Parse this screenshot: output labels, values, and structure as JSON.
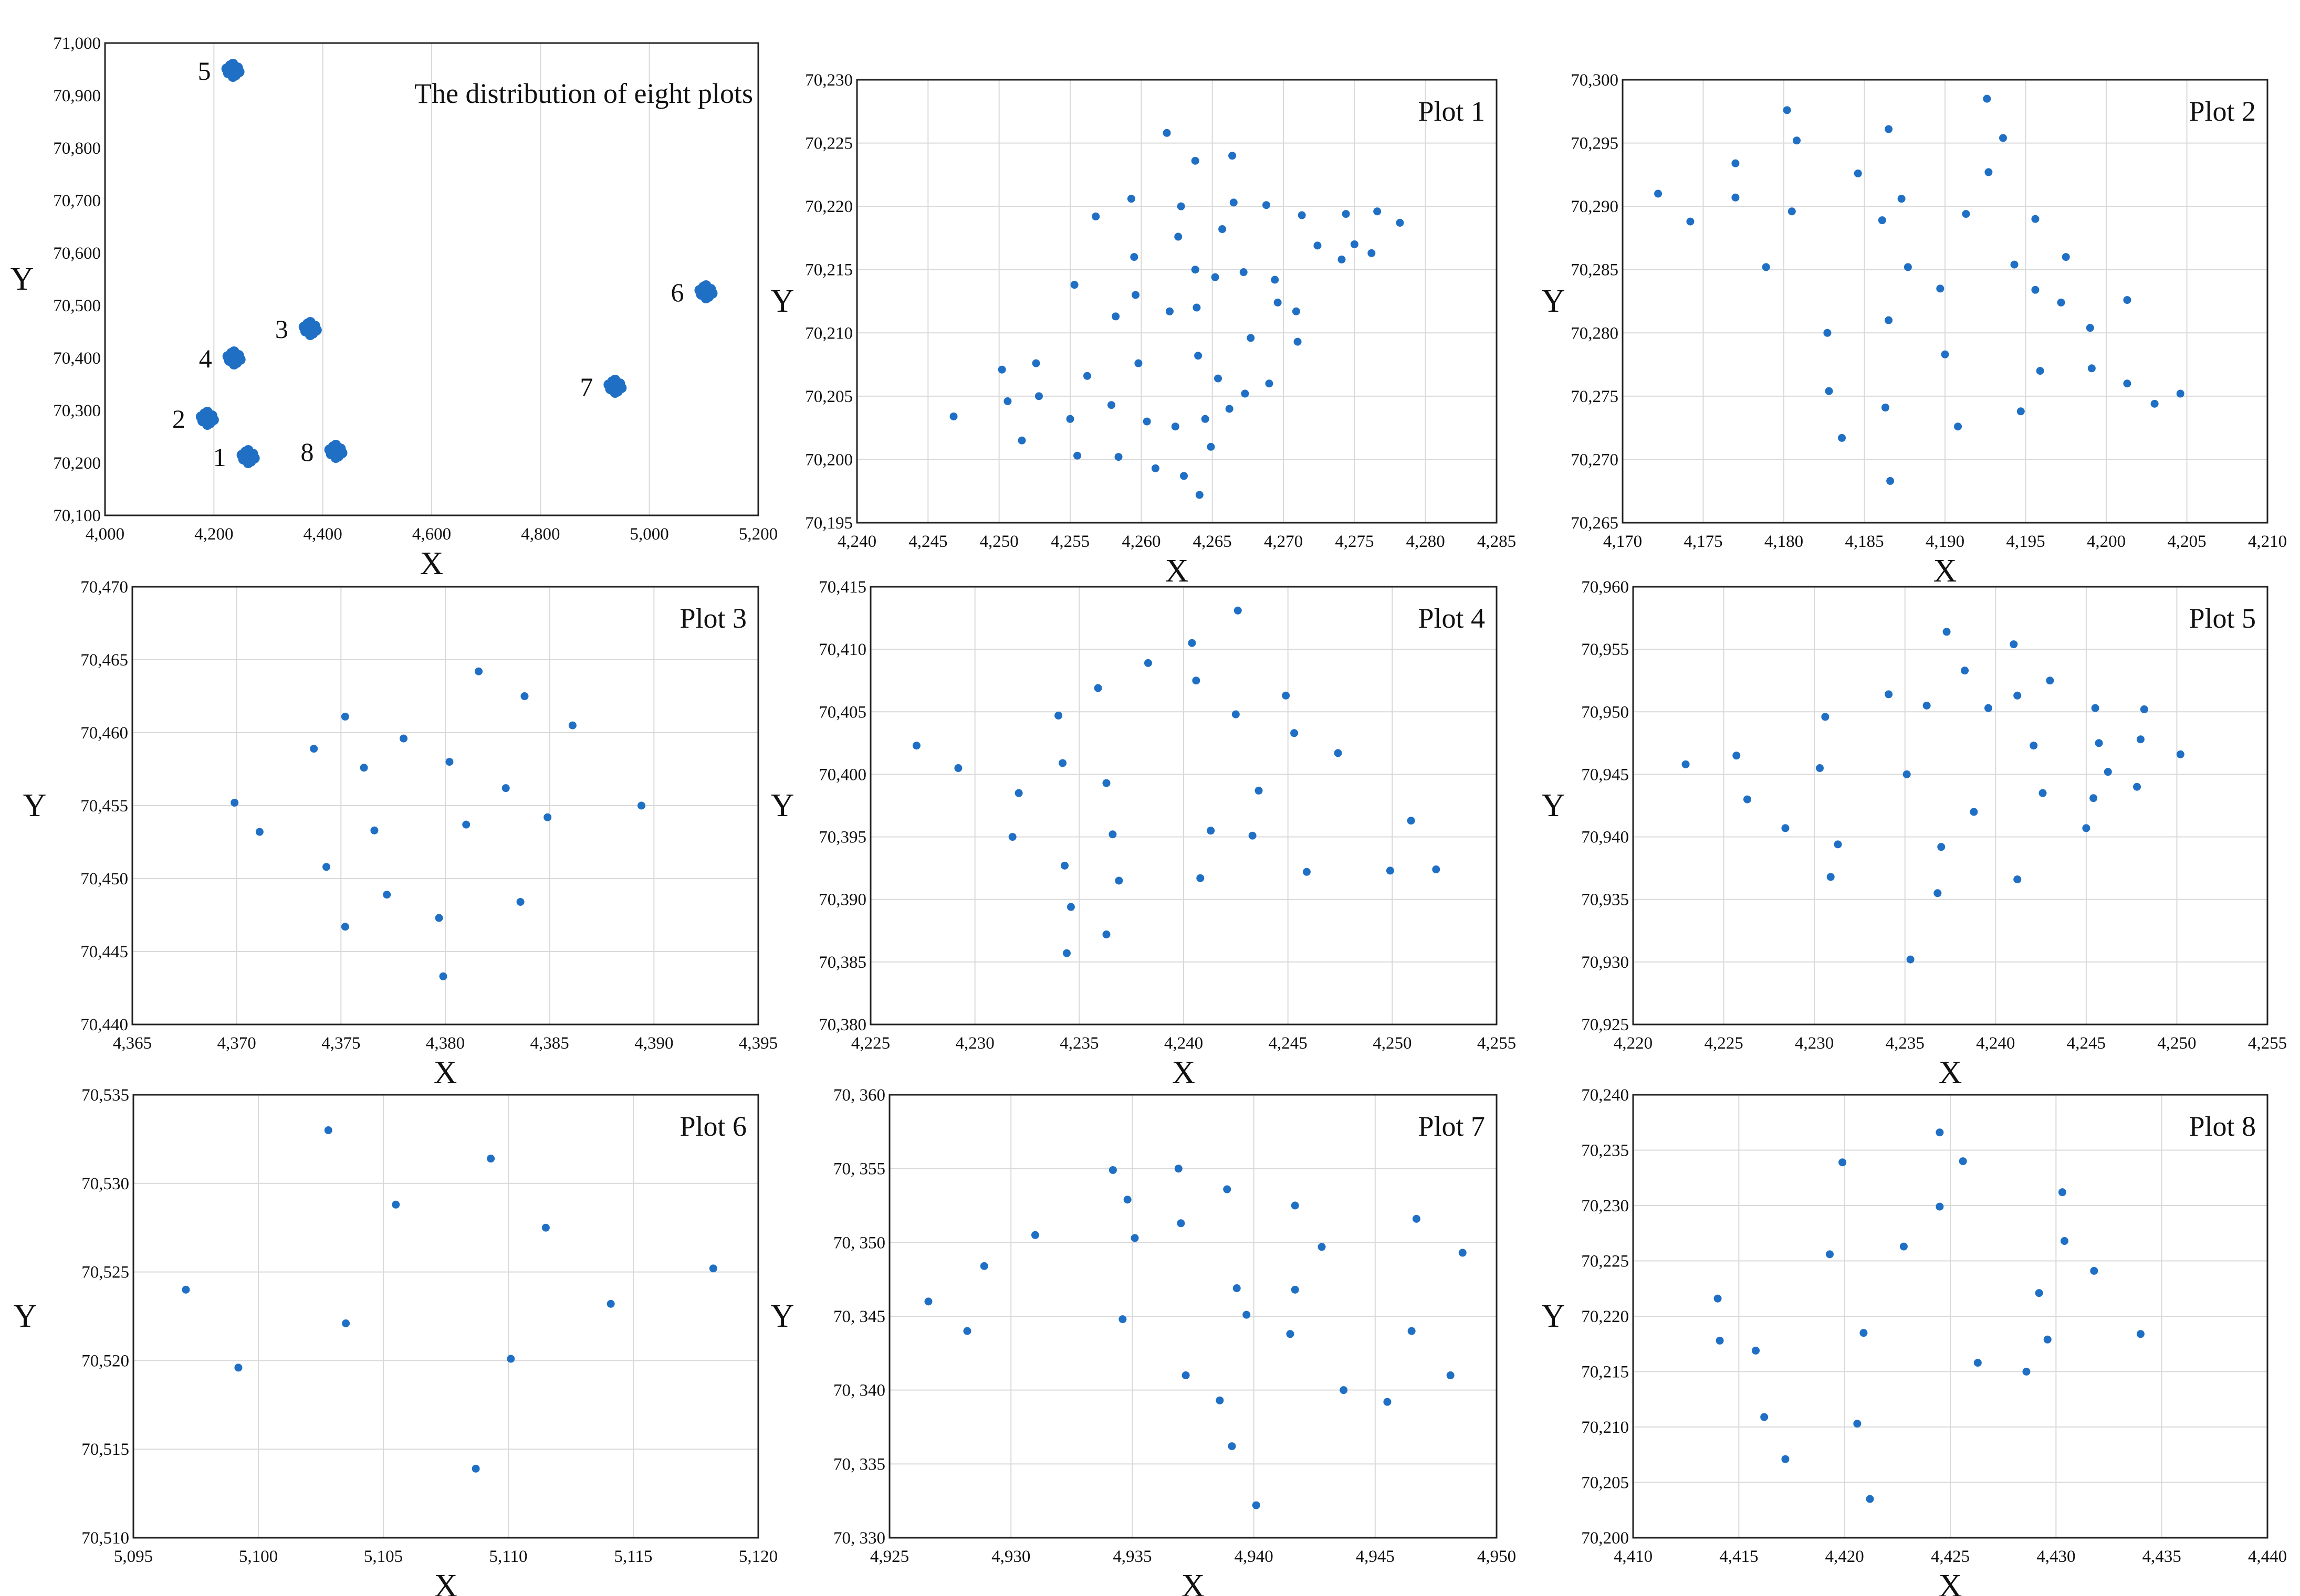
{
  "chart_data": [
    {
      "type": "scatter",
      "title": "The distribution of eight plots",
      "xlabel": "X",
      "ylabel": "Y",
      "xlim": [
        4000,
        5200
      ],
      "ylim": [
        70100,
        71000
      ],
      "x_ticks": [
        "4,000",
        "4,200",
        "4,400",
        "4,600",
        "4,800",
        "5,000",
        "5,200"
      ],
      "y_ticks": [
        "70,100",
        "70,200",
        "70,300",
        "70,400",
        "70,500",
        "70,600",
        "70,700",
        "70,800",
        "70,900",
        "71,000"
      ],
      "series_color": "#1f6fc5",
      "clusters": [
        {
          "label": "1",
          "x": 4263,
          "y": 70212
        },
        {
          "label": "2",
          "x": 4188,
          "y": 70285
        },
        {
          "label": "3",
          "x": 4377,
          "y": 70456
        },
        {
          "label": "4",
          "x": 4237,
          "y": 70400
        },
        {
          "label": "5",
          "x": 4235,
          "y": 70948
        },
        {
          "label": "6",
          "x": 5104,
          "y": 70526
        },
        {
          "label": "7",
          "x": 4937,
          "y": 70346
        },
        {
          "label": "8",
          "x": 4424,
          "y": 70222
        }
      ],
      "grid": "vertical"
    },
    {
      "type": "scatter",
      "title": "Plot 1",
      "xlabel": "X",
      "ylabel": "Y",
      "xlim": [
        4240,
        4285
      ],
      "ylim": [
        70195,
        70230
      ],
      "x_ticks": [
        "4,240",
        "4,245",
        "4,250",
        "4,255",
        "4,260",
        "4,265",
        "4,270",
        "4,275",
        "4,280",
        "4,285"
      ],
      "y_ticks": [
        "70,195",
        "70,200",
        "70,205",
        "70,210",
        "70,215",
        "70,220",
        "70,225",
        "70,230"
      ],
      "grid": "both",
      "points": [
        [
          4246.8,
          70203.4
        ],
        [
          4250.2,
          70207.1
        ],
        [
          4250.6,
          70204.6
        ],
        [
          4251.6,
          70201.5
        ],
        [
          4252.6,
          70207.6
        ],
        [
          4252.8,
          70205.0
        ],
        [
          4255.0,
          70203.2
        ],
        [
          4255.3,
          70213.8
        ],
        [
          4255.5,
          70200.3
        ],
        [
          4256.2,
          70206.6
        ],
        [
          4256.8,
          70219.2
        ],
        [
          4257.9,
          70204.3
        ],
        [
          4258.2,
          70211.3
        ],
        [
          4258.4,
          70200.2
        ],
        [
          4259.3,
          70220.6
        ],
        [
          4259.5,
          70216.0
        ],
        [
          4259.6,
          70213.0
        ],
        [
          4259.8,
          70207.6
        ],
        [
          4260.4,
          70203.0
        ],
        [
          4261.0,
          70199.3
        ],
        [
          4261.8,
          70225.8
        ],
        [
          4262.0,
          70211.7
        ],
        [
          4262.4,
          70202.6
        ],
        [
          4262.6,
          70217.6
        ],
        [
          4262.8,
          70220.0
        ],
        [
          4263.0,
          70198.7
        ],
        [
          4263.8,
          70223.6
        ],
        [
          4263.8,
          70215.0
        ],
        [
          4263.9,
          70212.0
        ],
        [
          4264.0,
          70208.2
        ],
        [
          4264.1,
          70197.2
        ],
        [
          4264.5,
          70203.2
        ],
        [
          4264.9,
          70201.0
        ],
        [
          4265.2,
          70214.4
        ],
        [
          4265.4,
          70206.4
        ],
        [
          4265.7,
          70218.2
        ],
        [
          4266.2,
          70204.0
        ],
        [
          4266.4,
          70224.0
        ],
        [
          4266.5,
          70220.3
        ],
        [
          4267.2,
          70214.8
        ],
        [
          4267.3,
          70205.2
        ],
        [
          4267.7,
          70209.6
        ],
        [
          4268.8,
          70220.1
        ],
        [
          4269.0,
          70206.0
        ],
        [
          4269.4,
          70214.2
        ],
        [
          4269.6,
          70212.4
        ],
        [
          4270.9,
          70211.7
        ],
        [
          4271.0,
          70209.3
        ],
        [
          4271.3,
          70219.3
        ],
        [
          4272.4,
          70216.9
        ],
        [
          4274.1,
          70215.8
        ],
        [
          4274.4,
          70219.4
        ],
        [
          4275.0,
          70217.0
        ],
        [
          4276.2,
          70216.3
        ],
        [
          4276.6,
          70219.6
        ],
        [
          4278.2,
          70218.7
        ]
      ]
    },
    {
      "type": "scatter",
      "title": "Plot 2",
      "xlabel": "X",
      "ylabel": "Y",
      "xlim": [
        4170,
        4210
      ],
      "ylim": [
        70265,
        70300
      ],
      "x_ticks": [
        "4,170",
        "4,175",
        "4,180",
        "4,185",
        "4,190",
        "4,195",
        "4,200",
        "4,205",
        "4,210"
      ],
      "y_ticks": [
        "70,265",
        "70,270",
        "70,275",
        "70,280",
        "70,285",
        "70,290",
        "70,295",
        "70,300"
      ],
      "grid": "both",
      "points": [
        [
          4172.2,
          70291.0
        ],
        [
          4174.2,
          70288.8
        ],
        [
          4177.0,
          70293.4
        ],
        [
          4177.0,
          70290.7
        ],
        [
          4178.9,
          70285.2
        ],
        [
          4180.2,
          70297.6
        ],
        [
          4180.5,
          70289.6
        ],
        [
          4180.8,
          70295.2
        ],
        [
          4182.7,
          70280.0
        ],
        [
          4182.8,
          70275.4
        ],
        [
          4183.6,
          70271.7
        ],
        [
          4184.6,
          70292.6
        ],
        [
          4186.1,
          70288.9
        ],
        [
          4186.3,
          70274.1
        ],
        [
          4186.5,
          70296.1
        ],
        [
          4186.5,
          70281.0
        ],
        [
          4186.6,
          70268.3
        ],
        [
          4187.3,
          70290.6
        ],
        [
          4187.7,
          70285.2
        ],
        [
          4189.7,
          70283.5
        ],
        [
          4190.0,
          70278.3
        ],
        [
          4190.8,
          70272.6
        ],
        [
          4191.3,
          70289.4
        ],
        [
          4192.6,
          70298.5
        ],
        [
          4192.7,
          70292.7
        ],
        [
          4193.6,
          70295.4
        ],
        [
          4194.3,
          70285.4
        ],
        [
          4194.7,
          70273.8
        ],
        [
          4195.6,
          70289.0
        ],
        [
          4195.6,
          70283.4
        ],
        [
          4195.9,
          70277.0
        ],
        [
          4197.2,
          70282.4
        ],
        [
          4197.5,
          70286.0
        ],
        [
          4199.0,
          70280.4
        ],
        [
          4199.1,
          70277.2
        ],
        [
          4201.3,
          70276.0
        ],
        [
          4201.3,
          70282.6
        ],
        [
          4203.0,
          70274.4
        ],
        [
          4204.6,
          70275.2
        ]
      ]
    },
    {
      "type": "scatter",
      "title": "Plot 3",
      "xlabel": "X",
      "ylabel": "Y",
      "xlim": [
        4365,
        4395
      ],
      "ylim": [
        70440,
        70470
      ],
      "x_ticks": [
        "4,365",
        "4,370",
        "4,375",
        "4,380",
        "4,385",
        "4,390",
        "4,395"
      ],
      "y_ticks": [
        "70,440",
        "70,445",
        "70,450",
        "70,455",
        "70,460",
        "70,465",
        "70,470"
      ],
      "grid": "both",
      "points": [
        [
          4369.9,
          70455.2
        ],
        [
          4371.1,
          70453.2
        ],
        [
          4373.7,
          70458.9
        ],
        [
          4374.3,
          70450.8
        ],
        [
          4375.2,
          70461.1
        ],
        [
          4375.2,
          70446.7
        ],
        [
          4376.1,
          70457.6
        ],
        [
          4376.6,
          70453.3
        ],
        [
          4377.2,
          70448.9
        ],
        [
          4378.0,
          70459.6
        ],
        [
          4379.7,
          70447.3
        ],
        [
          4379.9,
          70443.3
        ],
        [
          4380.2,
          70458.0
        ],
        [
          4381.0,
          70453.7
        ],
        [
          4381.6,
          70464.2
        ],
        [
          4382.9,
          70456.2
        ],
        [
          4383.6,
          70448.4
        ],
        [
          4383.8,
          70462.5
        ],
        [
          4384.9,
          70454.2
        ],
        [
          4386.1,
          70460.5
        ],
        [
          4389.4,
          70455.0
        ]
      ]
    },
    {
      "type": "scatter",
      "title": "Plot 4",
      "xlabel": "X",
      "ylabel": "Y",
      "xlim": [
        4225,
        4255
      ],
      "ylim": [
        70380,
        70415
      ],
      "x_ticks": [
        "4,225",
        "4,230",
        "4,235",
        "4,240",
        "4,245",
        "4,250",
        "4,255"
      ],
      "y_ticks": [
        "70,380",
        "70,385",
        "70,390",
        "70,395",
        "70,400",
        "70,405",
        "70,410",
        "70,415"
      ],
      "grid": "both",
      "points": [
        [
          4227.2,
          70402.3
        ],
        [
          4229.2,
          70400.5
        ],
        [
          4231.8,
          70395.0
        ],
        [
          4232.1,
          70398.5
        ],
        [
          4234.0,
          70404.7
        ],
        [
          4234.2,
          70400.9
        ],
        [
          4234.3,
          70392.7
        ],
        [
          4234.4,
          70385.7
        ],
        [
          4234.6,
          70389.4
        ],
        [
          4235.9,
          70406.9
        ],
        [
          4236.3,
          70399.3
        ],
        [
          4236.3,
          70387.2
        ],
        [
          4236.6,
          70395.2
        ],
        [
          4236.9,
          70391.5
        ],
        [
          4238.3,
          70408.9
        ],
        [
          4240.4,
          70410.5
        ],
        [
          4240.6,
          70407.5
        ],
        [
          4240.8,
          70391.7
        ],
        [
          4241.3,
          70395.5
        ],
        [
          4242.5,
          70404.8
        ],
        [
          4242.6,
          70413.1
        ],
        [
          4243.3,
          70395.1
        ],
        [
          4243.6,
          70398.7
        ],
        [
          4244.9,
          70406.3
        ],
        [
          4245.3,
          70403.3
        ],
        [
          4245.9,
          70392.2
        ],
        [
          4247.4,
          70401.7
        ],
        [
          4249.9,
          70392.3
        ],
        [
          4250.9,
          70396.3
        ],
        [
          4252.1,
          70392.4
        ]
      ]
    },
    {
      "type": "scatter",
      "title": "Plot 5",
      "xlabel": "X",
      "ylabel": "Y",
      "xlim": [
        4220,
        4255
      ],
      "ylim": [
        70925,
        70960
      ],
      "x_ticks": [
        "4,220",
        "4,225",
        "4,230",
        "4,235",
        "4,240",
        "4,245",
        "4,250",
        "4,255"
      ],
      "y_ticks": [
        "70,925",
        "70,930",
        "70,935",
        "70,940",
        "70,945",
        "70,950",
        "70,955",
        "70,960"
      ],
      "grid": "both",
      "points": [
        [
          4222.9,
          70945.8
        ],
        [
          4225.7,
          70946.5
        ],
        [
          4226.3,
          70943.0
        ],
        [
          4228.4,
          70940.7
        ],
        [
          4230.3,
          70945.5
        ],
        [
          4230.6,
          70949.6
        ],
        [
          4230.9,
          70936.8
        ],
        [
          4231.3,
          70939.4
        ],
        [
          4234.1,
          70951.4
        ],
        [
          4235.1,
          70945.0
        ],
        [
          4235.3,
          70930.2
        ],
        [
          4236.2,
          70950.5
        ],
        [
          4236.8,
          70935.5
        ],
        [
          4237.0,
          70939.2
        ],
        [
          4237.3,
          70956.4
        ],
        [
          4238.3,
          70953.3
        ],
        [
          4238.8,
          70942.0
        ],
        [
          4239.6,
          70950.3
        ],
        [
          4241.0,
          70955.4
        ],
        [
          4241.2,
          70936.6
        ],
        [
          4241.2,
          70951.3
        ],
        [
          4242.1,
          70947.3
        ],
        [
          4242.6,
          70943.5
        ],
        [
          4243.0,
          70952.5
        ],
        [
          4245.0,
          70940.7
        ],
        [
          4245.4,
          70943.1
        ],
        [
          4245.5,
          70950.3
        ],
        [
          4245.7,
          70947.5
        ],
        [
          4246.2,
          70945.2
        ],
        [
          4247.8,
          70944.0
        ],
        [
          4248.0,
          70947.8
        ],
        [
          4248.2,
          70950.2
        ],
        [
          4250.2,
          70946.6
        ]
      ]
    },
    {
      "type": "scatter",
      "title": "Plot 6",
      "xlabel": "X",
      "ylabel": "Y",
      "xlim": [
        5095,
        5120
      ],
      "ylim": [
        70510,
        70535
      ],
      "x_ticks": [
        "5,095",
        "5,100",
        "5,105",
        "5,110",
        "5,115",
        "5,120"
      ],
      "y_ticks": [
        "70,510",
        "70,515",
        "70,520",
        "70,525",
        "70,530",
        "70,535"
      ],
      "grid": "both",
      "points": [
        [
          5097.1,
          70524.0
        ],
        [
          5099.2,
          70519.6
        ],
        [
          5102.8,
          70533.0
        ],
        [
          5103.5,
          70522.1
        ],
        [
          5105.5,
          70528.8
        ],
        [
          5108.7,
          70513.9
        ],
        [
          5109.3,
          70531.4
        ],
        [
          5110.1,
          70520.1
        ],
        [
          5111.5,
          70527.5
        ],
        [
          5114.1,
          70523.2
        ],
        [
          5118.2,
          70525.2
        ]
      ]
    },
    {
      "type": "scatter",
      "title": "Plot 7",
      "xlabel": "X",
      "ylabel": "Y",
      "xlim": [
        4925,
        4950
      ],
      "ylim": [
        70330,
        70360
      ],
      "x_ticks": [
        "4,925",
        "4,930",
        "4,935",
        "4,940",
        "4,945",
        "4,950"
      ],
      "y_ticks": [
        "70, 330",
        "70, 335",
        "70, 340",
        "70, 345",
        "70, 350",
        "70, 355",
        "70, 360"
      ],
      "grid": "both",
      "points": [
        [
          4926.6,
          70346.0
        ],
        [
          4928.2,
          70344.0
        ],
        [
          4928.9,
          70348.4
        ],
        [
          4931.0,
          70350.5
        ],
        [
          4934.2,
          70354.9
        ],
        [
          4934.6,
          70344.8
        ],
        [
          4934.8,
          70352.9
        ],
        [
          4935.1,
          70350.3
        ],
        [
          4936.9,
          70355.0
        ],
        [
          4937.0,
          70351.3
        ],
        [
          4937.2,
          70341.0
        ],
        [
          4938.6,
          70339.3
        ],
        [
          4938.9,
          70353.6
        ],
        [
          4939.1,
          70336.2
        ],
        [
          4939.3,
          70346.9
        ],
        [
          4939.7,
          70345.1
        ],
        [
          4940.1,
          70332.2
        ],
        [
          4941.5,
          70343.8
        ],
        [
          4941.7,
          70352.5
        ],
        [
          4941.7,
          70346.8
        ],
        [
          4942.8,
          70349.7
        ],
        [
          4943.7,
          70340.0
        ],
        [
          4945.5,
          70339.2
        ],
        [
          4946.5,
          70344.0
        ],
        [
          4946.7,
          70351.6
        ],
        [
          4948.1,
          70341.0
        ],
        [
          4948.6,
          70349.3
        ]
      ]
    },
    {
      "type": "scatter",
      "title": "Plot 8",
      "xlabel": "X",
      "ylabel": "Y",
      "xlim": [
        4410,
        4440
      ],
      "ylim": [
        70200,
        70240
      ],
      "x_ticks": [
        "4,410",
        "4,415",
        "4,420",
        "4,425",
        "4,430",
        "4,435",
        "4,440"
      ],
      "y_ticks": [
        "70,200",
        "70,205",
        "70,210",
        "70,215",
        "70,220",
        "70,225",
        "70,230",
        "70,235",
        "70,240"
      ],
      "grid": "both",
      "points": [
        [
          4414.0,
          70221.6
        ],
        [
          4414.1,
          70217.8
        ],
        [
          4415.8,
          70216.9
        ],
        [
          4416.2,
          70210.9
        ],
        [
          4417.2,
          70207.1
        ],
        [
          4419.3,
          70225.6
        ],
        [
          4419.9,
          70233.9
        ],
        [
          4420.6,
          70210.3
        ],
        [
          4420.9,
          70218.5
        ],
        [
          4421.2,
          70203.5
        ],
        [
          4422.8,
          70226.3
        ],
        [
          4424.5,
          70236.6
        ],
        [
          4424.5,
          70229.9
        ],
        [
          4425.6,
          70234.0
        ],
        [
          4426.3,
          70215.8
        ],
        [
          4428.6,
          70215.0
        ],
        [
          4429.2,
          70222.1
        ],
        [
          4429.6,
          70217.9
        ],
        [
          4430.3,
          70231.2
        ],
        [
          4430.4,
          70226.8
        ],
        [
          4431.8,
          70224.1
        ],
        [
          4434.0,
          70218.4
        ]
      ]
    }
  ]
}
